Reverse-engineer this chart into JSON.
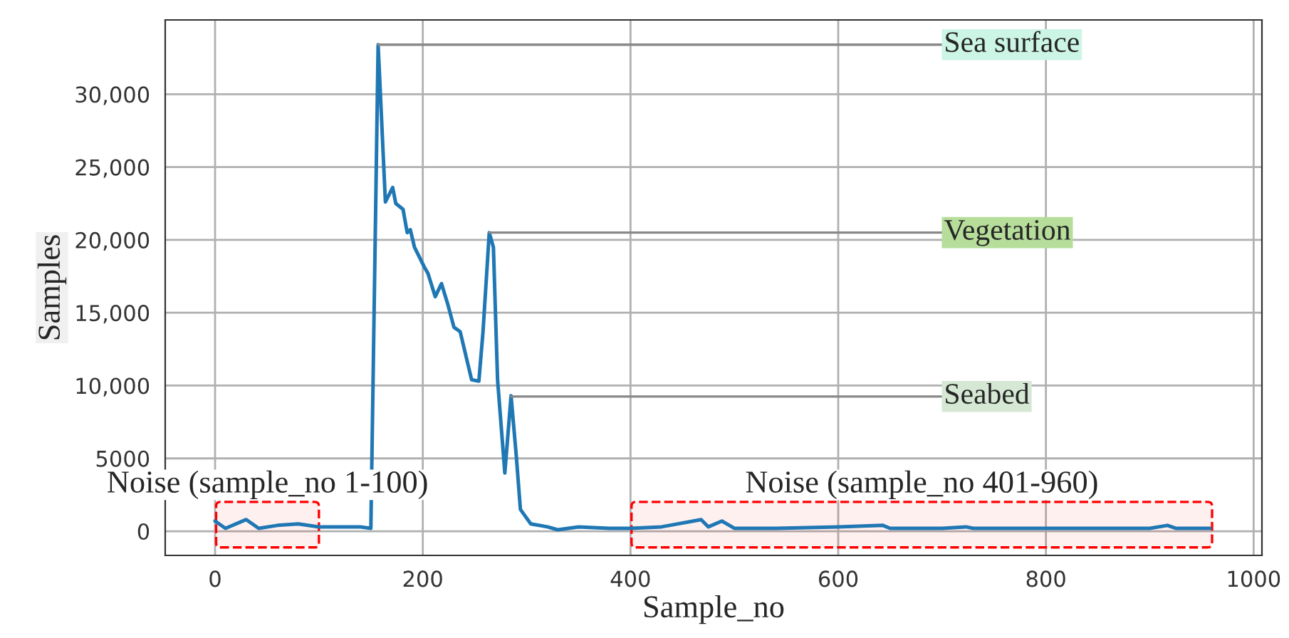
{
  "chart_data": {
    "type": "line",
    "xlabel": "Sample_no",
    "ylabel": "Samples",
    "x": [
      0,
      10,
      30,
      42,
      60,
      80,
      100,
      120,
      140,
      150,
      157,
      164,
      171,
      174,
      181,
      185,
      188,
      192,
      201,
      205,
      212,
      218,
      224,
      230,
      236,
      242,
      247,
      254,
      258,
      264,
      268,
      272,
      279,
      285,
      290,
      294,
      299,
      304,
      320,
      330,
      350,
      380,
      400,
      430,
      468,
      475,
      488,
      500,
      540,
      600,
      643,
      650,
      700,
      723,
      730,
      780,
      800,
      850,
      900,
      917,
      925,
      958
    ],
    "series": [
      {
        "color": "#1f77b4",
        "values": [
          700,
          200,
          800,
          200,
          400,
          500,
          300,
          300,
          300,
          200,
          33400,
          22600,
          23600,
          22500,
          22100,
          20500,
          20700,
          19500,
          18200,
          17700,
          16100,
          17000,
          15600,
          14000,
          13700,
          11900,
          10400,
          10300,
          13700,
          20500,
          19500,
          10400,
          4000,
          9300,
          5200,
          1500,
          1000,
          500,
          300,
          100,
          300,
          200,
          200,
          300,
          800,
          300,
          700,
          200,
          200,
          300,
          400,
          200,
          200,
          300,
          200,
          200,
          200,
          200,
          200,
          400,
          200,
          200
        ]
      }
    ],
    "xlim": [
      -48,
      1008
    ],
    "ylim": [
      -1660,
      35100
    ],
    "xticks": [
      0,
      200,
      400,
      600,
      800,
      1000
    ],
    "yticks": [
      {
        "value": 0,
        "label": "0"
      },
      {
        "value": 5000,
        "label": "5000"
      },
      {
        "value": 10000,
        "label": "10,000"
      },
      {
        "value": 15000,
        "label": "15,000"
      },
      {
        "value": 20000,
        "label": "20,000"
      },
      {
        "value": 25000,
        "label": "25,000"
      },
      {
        "value": 30000,
        "label": "30,000"
      }
    ],
    "grid": true,
    "marker": "none",
    "line_style": "solid",
    "annotations": [
      {
        "text": "Sea surface",
        "x": 157,
        "y": 33400
      },
      {
        "text": "Vegetation",
        "x": 264,
        "y": 20500
      },
      {
        "text": "Seabed",
        "x": 285,
        "y": 9250
      }
    ],
    "bands": [
      {
        "axis": "x",
        "from": 1,
        "to": 100,
        "label": "Noise (sample_no 1-100)",
        "color": "#ff0000"
      },
      {
        "axis": "x",
        "from": 401,
        "to": 960,
        "label": "Noise (sample_no 401-960)",
        "color": "#ff0000"
      }
    ]
  }
}
